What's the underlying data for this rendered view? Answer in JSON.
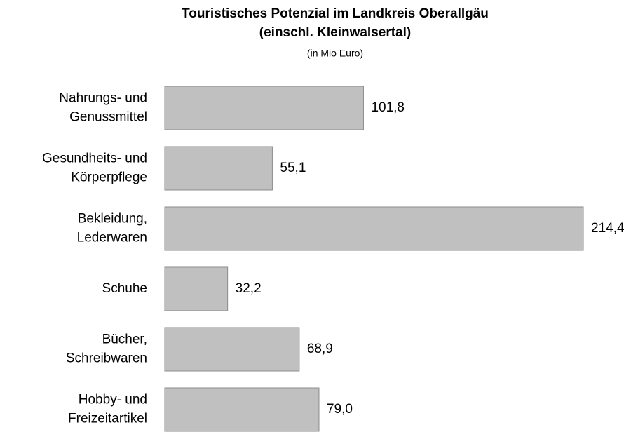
{
  "chart_data": {
    "type": "hbar",
    "title": [
      "Touristisches Potenzial im Landkreis Oberallgäu",
      "(einschl. Kleinwalsertal)"
    ],
    "subtitle": "(in Mio Euro)",
    "categories": [
      [
        "Nahrungs- und",
        "Genussmittel"
      ],
      [
        "Gesundheits- und",
        "Körperpflege"
      ],
      [
        "Bekleidung,",
        "Lederwaren"
      ],
      [
        "Schuhe"
      ],
      [
        "Bücher,",
        "Schreibwaren"
      ],
      [
        "Hobby- und",
        "Freizeitartikel"
      ]
    ],
    "values": [
      101.8,
      55.1,
      214.4,
      32.2,
      68.9,
      79.0
    ],
    "value_labels": [
      "101,8",
      "55,1",
      "214,4",
      "32,2",
      "68,9",
      "79,0"
    ],
    "color": "#c0c0c0"
  }
}
